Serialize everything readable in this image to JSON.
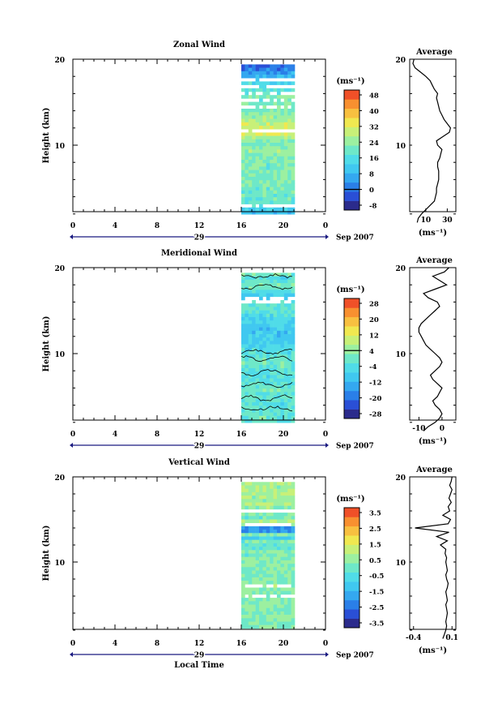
{
  "colors": {
    "scale": [
      "#2b2b8c",
      "#2a4fd6",
      "#2a7fe8",
      "#34a8f0",
      "#40c8f0",
      "#50dce8",
      "#6ee8c8",
      "#9cf0a0",
      "#c8f078",
      "#f0e850",
      "#f8c040",
      "#f89030",
      "#f05028"
    ],
    "ink": "#000000",
    "timebar": "#1a1a80"
  },
  "shared": {
    "y_ticks": [
      "20",
      "10"
    ],
    "x_ticks": [
      "0",
      "4",
      "8",
      "12",
      "16",
      "20",
      "0"
    ],
    "day_label": "29",
    "date_label": "Sep 2007",
    "ylabel": "Height (km)",
    "units": "(ms⁻¹)",
    "avg_title": "Average",
    "avg_units": "(ms⁻¹)",
    "xlabel": "Local Time"
  },
  "chart_data": [
    {
      "type": "heatmap",
      "title": "Zonal Wind",
      "ylim": [
        1,
        20
      ],
      "xlim": [
        0,
        24
      ],
      "data_time_range": [
        16,
        21
      ],
      "colorbar_ticks": [
        "48",
        "40",
        "32",
        "24",
        "16",
        "8",
        "0",
        "-8"
      ],
      "colorbar_range": [
        -12,
        52
      ],
      "zero_line_tick": "0",
      "profile": {
        "type": "line",
        "xticks": [
          "10",
          "30"
        ],
        "xlim": [
          -5,
          38
        ],
        "heights": [
          1,
          1.5,
          2,
          2.5,
          3,
          3.5,
          4,
          4.5,
          5,
          5.5,
          6,
          6.5,
          7,
          7.5,
          8,
          8.5,
          9,
          9.5,
          10,
          10.5,
          11,
          11.5,
          12,
          12.5,
          13,
          13.5,
          14,
          14.5,
          15,
          15.5,
          16,
          16.5,
          17,
          17.5,
          18,
          18.5,
          19,
          19.5,
          20
        ],
        "values": [
          2,
          3,
          6,
          10,
          14,
          18,
          19,
          20,
          20,
          21,
          22,
          22,
          22,
          21,
          21,
          23,
          24,
          25,
          21,
          20,
          26,
          32,
          33,
          30,
          27,
          25,
          23,
          22,
          21,
          20,
          21,
          18,
          16,
          14,
          10,
          5,
          0,
          -2,
          -1
        ]
      }
    },
    {
      "type": "heatmap",
      "title": "Meridional Wind",
      "ylim": [
        1,
        20
      ],
      "xlim": [
        0,
        24
      ],
      "data_time_range": [
        16,
        21
      ],
      "colorbar_ticks": [
        "28",
        "20",
        "12",
        "4",
        "-4",
        "-12",
        "-20",
        "-28"
      ],
      "colorbar_range": [
        -32,
        32
      ],
      "zero_line_tick": "4",
      "profile": {
        "type": "line",
        "xticks": [
          "-10",
          "0"
        ],
        "xlim": [
          -14,
          6
        ],
        "heights": [
          1,
          1.5,
          2,
          2.5,
          3,
          3.5,
          4,
          4.5,
          5,
          5.5,
          6,
          6.5,
          7,
          7.5,
          8,
          8.5,
          9,
          9.5,
          10,
          10.5,
          11,
          11.5,
          12,
          12.5,
          13,
          13.5,
          14,
          14.5,
          15,
          15.5,
          16,
          16.5,
          17,
          17.5,
          18,
          18.5,
          19,
          19.5,
          20
        ],
        "values": [
          -8,
          -6,
          -3,
          -1,
          0,
          -1,
          -3,
          -4,
          -2,
          -1,
          0,
          -2,
          -4,
          -5,
          -3,
          -1,
          0,
          -1,
          -3,
          -5,
          -7,
          -8,
          -9,
          -10,
          -10,
          -9,
          -7,
          -5,
          -3,
          -1,
          -2,
          -6,
          -8,
          -3,
          2,
          -1,
          -4,
          1,
          3
        ]
      }
    },
    {
      "type": "heatmap",
      "title": "Vertical Wind",
      "ylim": [
        1,
        20
      ],
      "xlim": [
        0,
        24
      ],
      "data_time_range": [
        16,
        21
      ],
      "colorbar_ticks": [
        "3.5",
        "2.5",
        "1.5",
        "0.5",
        "-0.5",
        "-1.5",
        "-2.5",
        "-3.5"
      ],
      "colorbar_range": [
        -4,
        4
      ],
      "profile": {
        "type": "line",
        "xticks": [
          "-0.4",
          "0.1"
        ],
        "xlim": [
          -0.45,
          0.15
        ],
        "heights": [
          1,
          1.5,
          2,
          2.5,
          3,
          3.5,
          4,
          4.5,
          5,
          5.5,
          6,
          6.5,
          7,
          7.5,
          8,
          8.5,
          9,
          9.5,
          10,
          10.5,
          11,
          11.5,
          12,
          12.5,
          13,
          13.5,
          14,
          14.5,
          15,
          15.5,
          16,
          16.5,
          17,
          17.5,
          18,
          18.5,
          19,
          19.5,
          20
        ],
        "values": [
          -0.02,
          0,
          0.02,
          0.03,
          0.02,
          0.03,
          0.04,
          0.03,
          0.02,
          0.04,
          0.03,
          0.02,
          0.04,
          0.05,
          0.03,
          0.02,
          0.04,
          0.03,
          0.02,
          0.03,
          0.01,
          0.02,
          -0.05,
          0.04,
          -0.1,
          0.06,
          -0.38,
          0.05,
          0.08,
          -0.02,
          0.07,
          0.05,
          0.09,
          0.06,
          0.08,
          0.1,
          0.07,
          0.09,
          0.1
        ]
      }
    }
  ]
}
